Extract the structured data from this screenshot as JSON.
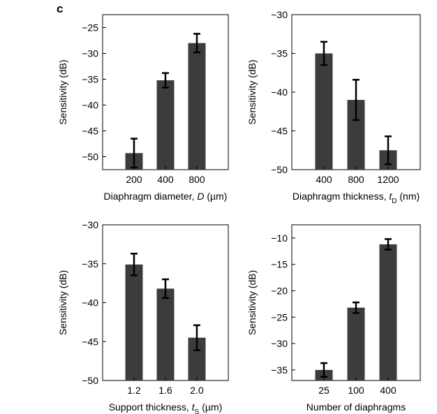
{
  "panel_label": "c",
  "chart_data": [
    {
      "type": "bar",
      "categories": [
        "200",
        "400",
        "800"
      ],
      "values": [
        -49.3,
        -35.2,
        -28.0
      ],
      "errors": [
        2.8,
        1.4,
        1.8
      ],
      "ylabel": "Sensitivity (dB)",
      "xlabel": "Diaphragm diameter, D (µm)",
      "xlabel_parts": {
        "pre": "Diaphragm diameter, ",
        "var": "D",
        "sub": "",
        "post": " (µm)"
      },
      "ylim": [
        -52.5,
        -22.5
      ],
      "yticks": [
        -50,
        -45,
        -40,
        -35,
        -30,
        -25
      ],
      "ytick_labels": [
        "−50",
        "−45",
        "−40",
        "−35",
        "−30",
        "−25"
      ],
      "bar_color": "#3c3c3c"
    },
    {
      "type": "bar",
      "categories": [
        "400",
        "800",
        "1200"
      ],
      "values": [
        -35.0,
        -41.0,
        -47.5
      ],
      "errors": [
        1.5,
        2.6,
        1.8
      ],
      "ylabel": "Sensitivity (dB)",
      "xlabel": "Diaphragm thickness, tD (nm)",
      "xlabel_parts": {
        "pre": "Diaphragm thickness, ",
        "var": "t",
        "sub": "D",
        "post": " (nm)"
      },
      "ylim": [
        -50,
        -30
      ],
      "yticks": [
        -50,
        -45,
        -40,
        -35,
        -30
      ],
      "ytick_labels": [
        "−50",
        "−45",
        "−40",
        "−35",
        "−30"
      ],
      "bar_color": "#3c3c3c"
    },
    {
      "type": "bar",
      "categories": [
        "1.2",
        "1.6",
        "2.0"
      ],
      "values": [
        -35.1,
        -38.2,
        -44.5
      ],
      "errors": [
        1.4,
        1.2,
        1.6
      ],
      "ylabel": "Sensitivity (dB)",
      "xlabel": "Support thickness, ts (µm)",
      "xlabel_parts": {
        "pre": "Support thickness, ",
        "var": "t",
        "sub": "S",
        "post": " (µm)"
      },
      "ylim": [
        -50,
        -30
      ],
      "yticks": [
        -50,
        -45,
        -40,
        -35,
        -30
      ],
      "ytick_labels": [
        "−50",
        "−45",
        "−40",
        "−35",
        "−30"
      ],
      "bar_color": "#3c3c3c"
    },
    {
      "type": "bar",
      "categories": [
        "25",
        "100",
        "400"
      ],
      "values": [
        -35.0,
        -23.2,
        -11.2
      ],
      "errors": [
        1.3,
        1.0,
        1.0
      ],
      "ylabel": "Sensitivity (dB)",
      "xlabel": "Number of diaphragms",
      "xlabel_parts": {
        "pre": "Number of diaphragms",
        "var": "",
        "sub": "",
        "post": ""
      },
      "ylim": [
        -37,
        -7.5
      ],
      "yticks": [
        -35,
        -30,
        -25,
        -20,
        -15,
        -10
      ],
      "ytick_labels": [
        "−35",
        "−30",
        "−25",
        "−20",
        "−15",
        "−10"
      ],
      "bar_color": "#3c3c3c"
    }
  ]
}
